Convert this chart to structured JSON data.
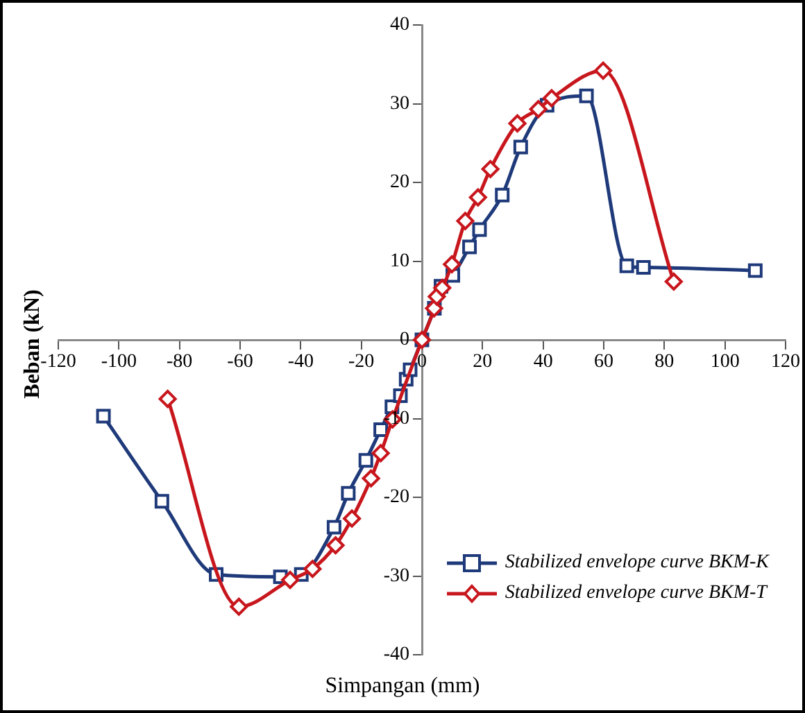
{
  "chart_data": {
    "type": "line",
    "xlabel": "Simpangan (mm)",
    "ylabel": "Beban (kN)",
    "xlim": [
      -120,
      120
    ],
    "ylim": [
      -40,
      40
    ],
    "xticks": [
      -120,
      -100,
      -80,
      -60,
      -40,
      -20,
      0,
      20,
      40,
      60,
      80,
      100,
      120
    ],
    "yticks": [
      -40,
      -30,
      -20,
      -10,
      0,
      10,
      20,
      30,
      40
    ],
    "grid": false,
    "legend": "bottom right",
    "series": [
      {
        "name": "Stabilized envelope curve BKM-K",
        "color": "#1f3a7a",
        "marker": "square",
        "x": [
          -105.1,
          -85.8,
          -67.9,
          -46.7,
          -39.8,
          -29,
          -24.3,
          -18.5,
          -13.6,
          -9.9,
          -7.1,
          -5.2,
          -3.9,
          0,
          4.1,
          6.3,
          10.2,
          15.7,
          19,
          26.5,
          32.6,
          41.3,
          54.3,
          67.6,
          73.1,
          110
        ],
        "values": [
          -9.7,
          -20.5,
          -29.8,
          -30.1,
          -29.8,
          -23.8,
          -19.5,
          -15.3,
          -11.4,
          -8.5,
          -7.1,
          -5,
          -3.8,
          0,
          4,
          6.8,
          8.2,
          11.8,
          14,
          18.4,
          24.5,
          29.8,
          31,
          9.4,
          9.2,
          8.8
        ]
      },
      {
        "name": "Stabilized envelope curve BKM-T",
        "color": "#c8161d",
        "marker": "diamond",
        "x": [
          -83.9,
          -60.4,
          -43.5,
          -36.1,
          -28.5,
          -23.1,
          -16.8,
          -13.6,
          -9.7,
          0,
          4,
          4.9,
          6.7,
          9.9,
          14.3,
          18.5,
          22.6,
          31.5,
          38.4,
          42.8,
          59.8,
          83.1
        ],
        "values": [
          -7.5,
          -33.9,
          -30.5,
          -29.1,
          -26.1,
          -22.7,
          -17.6,
          -14.4,
          -10.1,
          0,
          4,
          5.5,
          6.6,
          9.6,
          15.1,
          18.1,
          21.7,
          27.5,
          29.3,
          30.7,
          34.2,
          7.4
        ]
      }
    ]
  }
}
